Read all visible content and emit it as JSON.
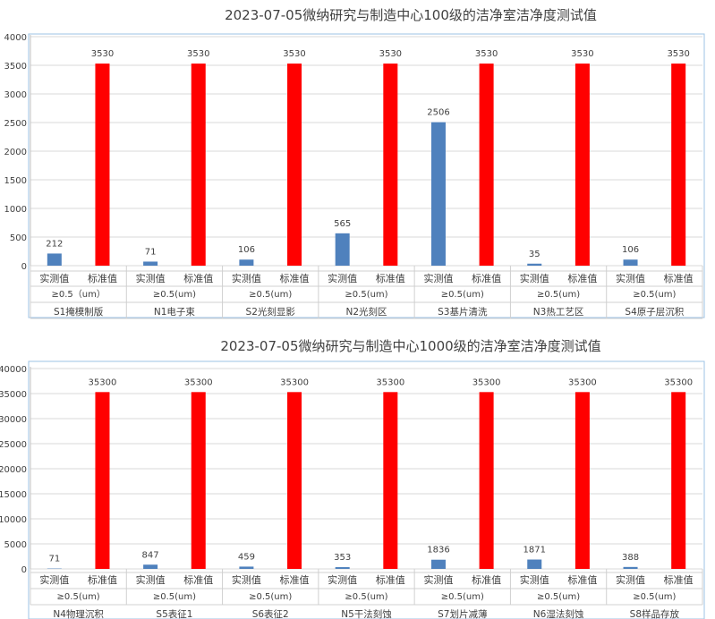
{
  "colors": {
    "measured": "#4f81bd",
    "standard": "#ff0000",
    "grid": "#d9d9d9",
    "frame": "#9dc3e6",
    "text": "#404040"
  },
  "chart_data": [
    {
      "type": "bar",
      "title": "2023-07-05微纳研究与制造中心100级的洁净室洁净度测试值",
      "series_labels": [
        "实测值",
        "标准值"
      ],
      "groups": [
        {
          "name": "S1掩模制版",
          "particle": "≥0.5（um）",
          "measured": 212,
          "standard": 3530
        },
        {
          "name": "N1电子束",
          "particle": "≥0.5(um)",
          "measured": 71,
          "standard": 3530
        },
        {
          "name": "S2光刻显影",
          "particle": "≥0.5(um)",
          "measured": 106,
          "standard": 3530
        },
        {
          "name": "N2光刻区",
          "particle": "≥0.5(um)",
          "measured": 565,
          "standard": 3530
        },
        {
          "name": "S3基片清洗",
          "particle": "≥0.5(um)",
          "measured": 2506,
          "standard": 3530
        },
        {
          "name": "N3热工艺区",
          "particle": "≥0.5(um)",
          "measured": 35,
          "standard": 3530
        },
        {
          "name": "S4原子层沉积",
          "particle": "≥0.5(um)",
          "measured": 106,
          "standard": 3530
        }
      ],
      "yticks": [
        0,
        500,
        1000,
        1500,
        2000,
        2500,
        3000,
        3500,
        4000
      ],
      "ylim": [
        0,
        4000
      ],
      "grid": true
    },
    {
      "type": "bar",
      "title": "2023-07-05微纳研究与制造中心1000级的洁净室洁净度测试值",
      "series_labels": [
        "实测值",
        "标准值"
      ],
      "groups": [
        {
          "name": "N4物理沉积",
          "particle": "≥0.5(um)",
          "measured": 71,
          "standard": 35300
        },
        {
          "name": "S5表征1",
          "particle": "≥0.5(um)",
          "measured": 847,
          "standard": 35300
        },
        {
          "name": "S6表征2",
          "particle": "≥0.5(um)",
          "measured": 459,
          "standard": 35300
        },
        {
          "name": "N5干法刻蚀",
          "particle": "≥0.5(um)",
          "measured": 353,
          "standard": 35300
        },
        {
          "name": "S7划片减薄",
          "particle": "≥0.5(um)",
          "measured": 1836,
          "standard": 35300
        },
        {
          "name": "N6湿法刻蚀",
          "particle": "≥0.5(um)",
          "measured": 1871,
          "standard": 35300
        },
        {
          "name": "S8样品存放",
          "particle": "≥0.5(um)",
          "measured": 388,
          "standard": 35300
        }
      ],
      "yticks": [
        0,
        5000,
        10000,
        15000,
        20000,
        25000,
        30000,
        35000,
        40000
      ],
      "ylim": [
        0,
        40000
      ],
      "grid": true
    }
  ]
}
